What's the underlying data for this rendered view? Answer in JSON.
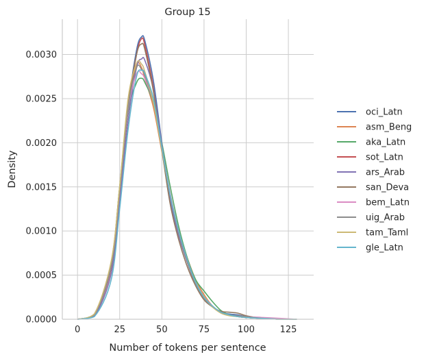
{
  "chart_data": {
    "type": "line",
    "title": "Group 15",
    "xlabel": "Number of tokens per sentence",
    "ylabel": "Density",
    "xlim": [
      -9,
      140
    ],
    "ylim": [
      0,
      0.0034
    ],
    "xticks": [
      0,
      25,
      50,
      75,
      100,
      125
    ],
    "yticks": [
      0.0,
      0.0005,
      0.001,
      0.0015,
      0.002,
      0.0025,
      0.003
    ],
    "xtick_labels": [
      "0",
      "25",
      "50",
      "75",
      "100",
      "125"
    ],
    "ytick_labels": [
      "0.0000",
      "0.0005",
      "0.0010",
      "0.0015",
      "0.0020",
      "0.0025",
      "0.0030"
    ],
    "grid": true,
    "legend_position": "right",
    "series": [
      {
        "name": "oci_Latn",
        "color": "#4c72b0",
        "x": [
          0,
          10,
          20,
          25,
          30,
          35,
          38,
          40,
          45,
          50,
          55,
          60,
          65,
          70,
          75,
          80,
          85,
          90,
          95,
          100,
          110,
          120,
          130
        ],
        "y": [
          0,
          5e-05,
          0.0006,
          0.00145,
          0.0024,
          0.00305,
          0.0032,
          0.00315,
          0.0027,
          0.002,
          0.00135,
          0.00095,
          0.00065,
          0.0004,
          0.00025,
          0.00015,
          8e-05,
          6e-05,
          5e-05,
          3e-05,
          1e-05,
          0,
          0
        ]
      },
      {
        "name": "asm_Beng",
        "color": "#dd8452",
        "x": [
          0,
          10,
          20,
          25,
          30,
          35,
          38,
          40,
          45,
          50,
          55,
          60,
          65,
          70,
          75,
          80,
          85,
          90,
          95,
          100,
          110,
          120,
          130
        ],
        "y": [
          0,
          6e-05,
          0.00065,
          0.0015,
          0.00245,
          0.00288,
          0.00285,
          0.00272,
          0.0024,
          0.0019,
          0.0014,
          0.001,
          0.0007,
          0.00045,
          0.00028,
          0.00015,
          8e-05,
          5e-05,
          3e-05,
          2e-05,
          1e-05,
          0,
          0
        ]
      },
      {
        "name": "aka_Latn",
        "color": "#55a868",
        "x": [
          0,
          10,
          20,
          25,
          30,
          35,
          38,
          40,
          45,
          50,
          55,
          60,
          65,
          70,
          75,
          80,
          85,
          90,
          95,
          100,
          110,
          120,
          130
        ],
        "y": [
          0,
          6e-05,
          0.00062,
          0.0015,
          0.00235,
          0.00268,
          0.00273,
          0.00268,
          0.00245,
          0.002,
          0.0015,
          0.00105,
          0.0007,
          0.00045,
          0.00032,
          0.0002,
          0.0001,
          5e-05,
          3e-05,
          2e-05,
          1e-05,
          0,
          0
        ]
      },
      {
        "name": "sot_Latn",
        "color": "#c44e52",
        "x": [
          0,
          10,
          20,
          25,
          30,
          35,
          38,
          40,
          45,
          50,
          55,
          60,
          65,
          70,
          75,
          80,
          85,
          90,
          95,
          100,
          110,
          120,
          130
        ],
        "y": [
          0,
          5e-05,
          0.00058,
          0.00142,
          0.00238,
          0.003,
          0.00318,
          0.0031,
          0.00262,
          0.00195,
          0.00135,
          0.00095,
          0.00065,
          0.0004,
          0.00024,
          0.00014,
          8e-05,
          5e-05,
          3e-05,
          2e-05,
          1e-05,
          0,
          0
        ]
      },
      {
        "name": "ars_Arab",
        "color": "#8172b3",
        "x": [
          0,
          10,
          20,
          25,
          30,
          35,
          38,
          40,
          45,
          50,
          55,
          60,
          65,
          70,
          75,
          80,
          85,
          90,
          95,
          100,
          110,
          120,
          130
        ],
        "y": [
          0,
          4e-05,
          0.00052,
          0.00135,
          0.00225,
          0.00285,
          0.00295,
          0.00293,
          0.0026,
          0.00198,
          0.00135,
          0.00095,
          0.00065,
          0.0004,
          0.00025,
          0.00014,
          8e-05,
          5e-05,
          3e-05,
          2e-05,
          1e-05,
          0,
          0
        ]
      },
      {
        "name": "san_Deva",
        "color": "#937860",
        "x": [
          0,
          10,
          20,
          25,
          30,
          35,
          38,
          40,
          45,
          50,
          55,
          60,
          65,
          70,
          75,
          80,
          85,
          90,
          95,
          100,
          110,
          120,
          130
        ],
        "y": [
          0,
          5e-05,
          0.0006,
          0.00145,
          0.0024,
          0.003,
          0.00312,
          0.00305,
          0.00258,
          0.00192,
          0.0013,
          0.0009,
          0.0006,
          0.00038,
          0.00022,
          0.00014,
          9e-05,
          8e-05,
          7e-05,
          4e-05,
          1e-05,
          0,
          0
        ]
      },
      {
        "name": "bem_Latn",
        "color": "#da8bc3",
        "x": [
          0,
          10,
          20,
          25,
          30,
          35,
          38,
          40,
          45,
          50,
          55,
          60,
          65,
          70,
          75,
          80,
          85,
          90,
          95,
          100,
          110,
          120,
          130
        ],
        "y": [
          0,
          5e-05,
          0.0006,
          0.00145,
          0.00238,
          0.00278,
          0.00278,
          0.00272,
          0.00245,
          0.00195,
          0.00142,
          0.001,
          0.00068,
          0.00042,
          0.00026,
          0.00015,
          8e-05,
          5e-05,
          4e-05,
          3e-05,
          2e-05,
          1e-05,
          0
        ]
      },
      {
        "name": "uig_Arab",
        "color": "#8c8c8c",
        "x": [
          0,
          10,
          20,
          25,
          30,
          35,
          38,
          40,
          45,
          50,
          55,
          60,
          65,
          70,
          75,
          80,
          85,
          90,
          95,
          100,
          110,
          120,
          130
        ],
        "y": [
          0,
          5e-05,
          0.0006,
          0.00145,
          0.0024,
          0.00285,
          0.00283,
          0.00276,
          0.00245,
          0.00195,
          0.0014,
          0.00098,
          0.00066,
          0.0004,
          0.00024,
          0.00014,
          8e-05,
          5e-05,
          4e-05,
          3e-05,
          1e-05,
          0,
          0
        ]
      },
      {
        "name": "tam_Taml",
        "color": "#ccb974",
        "x": [
          0,
          10,
          20,
          25,
          30,
          35,
          38,
          40,
          45,
          50,
          55,
          60,
          65,
          70,
          75,
          80,
          85,
          90,
          95,
          100,
          110,
          120,
          130
        ],
        "y": [
          0,
          6e-05,
          0.00066,
          0.0015,
          0.0025,
          0.0029,
          0.00289,
          0.0028,
          0.00245,
          0.00192,
          0.0014,
          0.001,
          0.00068,
          0.00042,
          0.00026,
          0.00014,
          7e-05,
          4e-05,
          3e-05,
          2e-05,
          1e-05,
          0,
          0
        ]
      },
      {
        "name": "gle_Latn",
        "color": "#64b5cd",
        "x": [
          0,
          10,
          20,
          25,
          30,
          35,
          38,
          40,
          45,
          50,
          55,
          60,
          65,
          70,
          75,
          80,
          85,
          90,
          95,
          100,
          110,
          120,
          130
        ],
        "y": [
          0,
          3e-05,
          0.00045,
          0.00125,
          0.00215,
          0.00275,
          0.00282,
          0.00278,
          0.0025,
          0.00195,
          0.0014,
          0.001,
          0.00068,
          0.00042,
          0.00025,
          0.00015,
          8e-05,
          5e-05,
          3e-05,
          2e-05,
          1e-05,
          0,
          0
        ]
      }
    ]
  }
}
